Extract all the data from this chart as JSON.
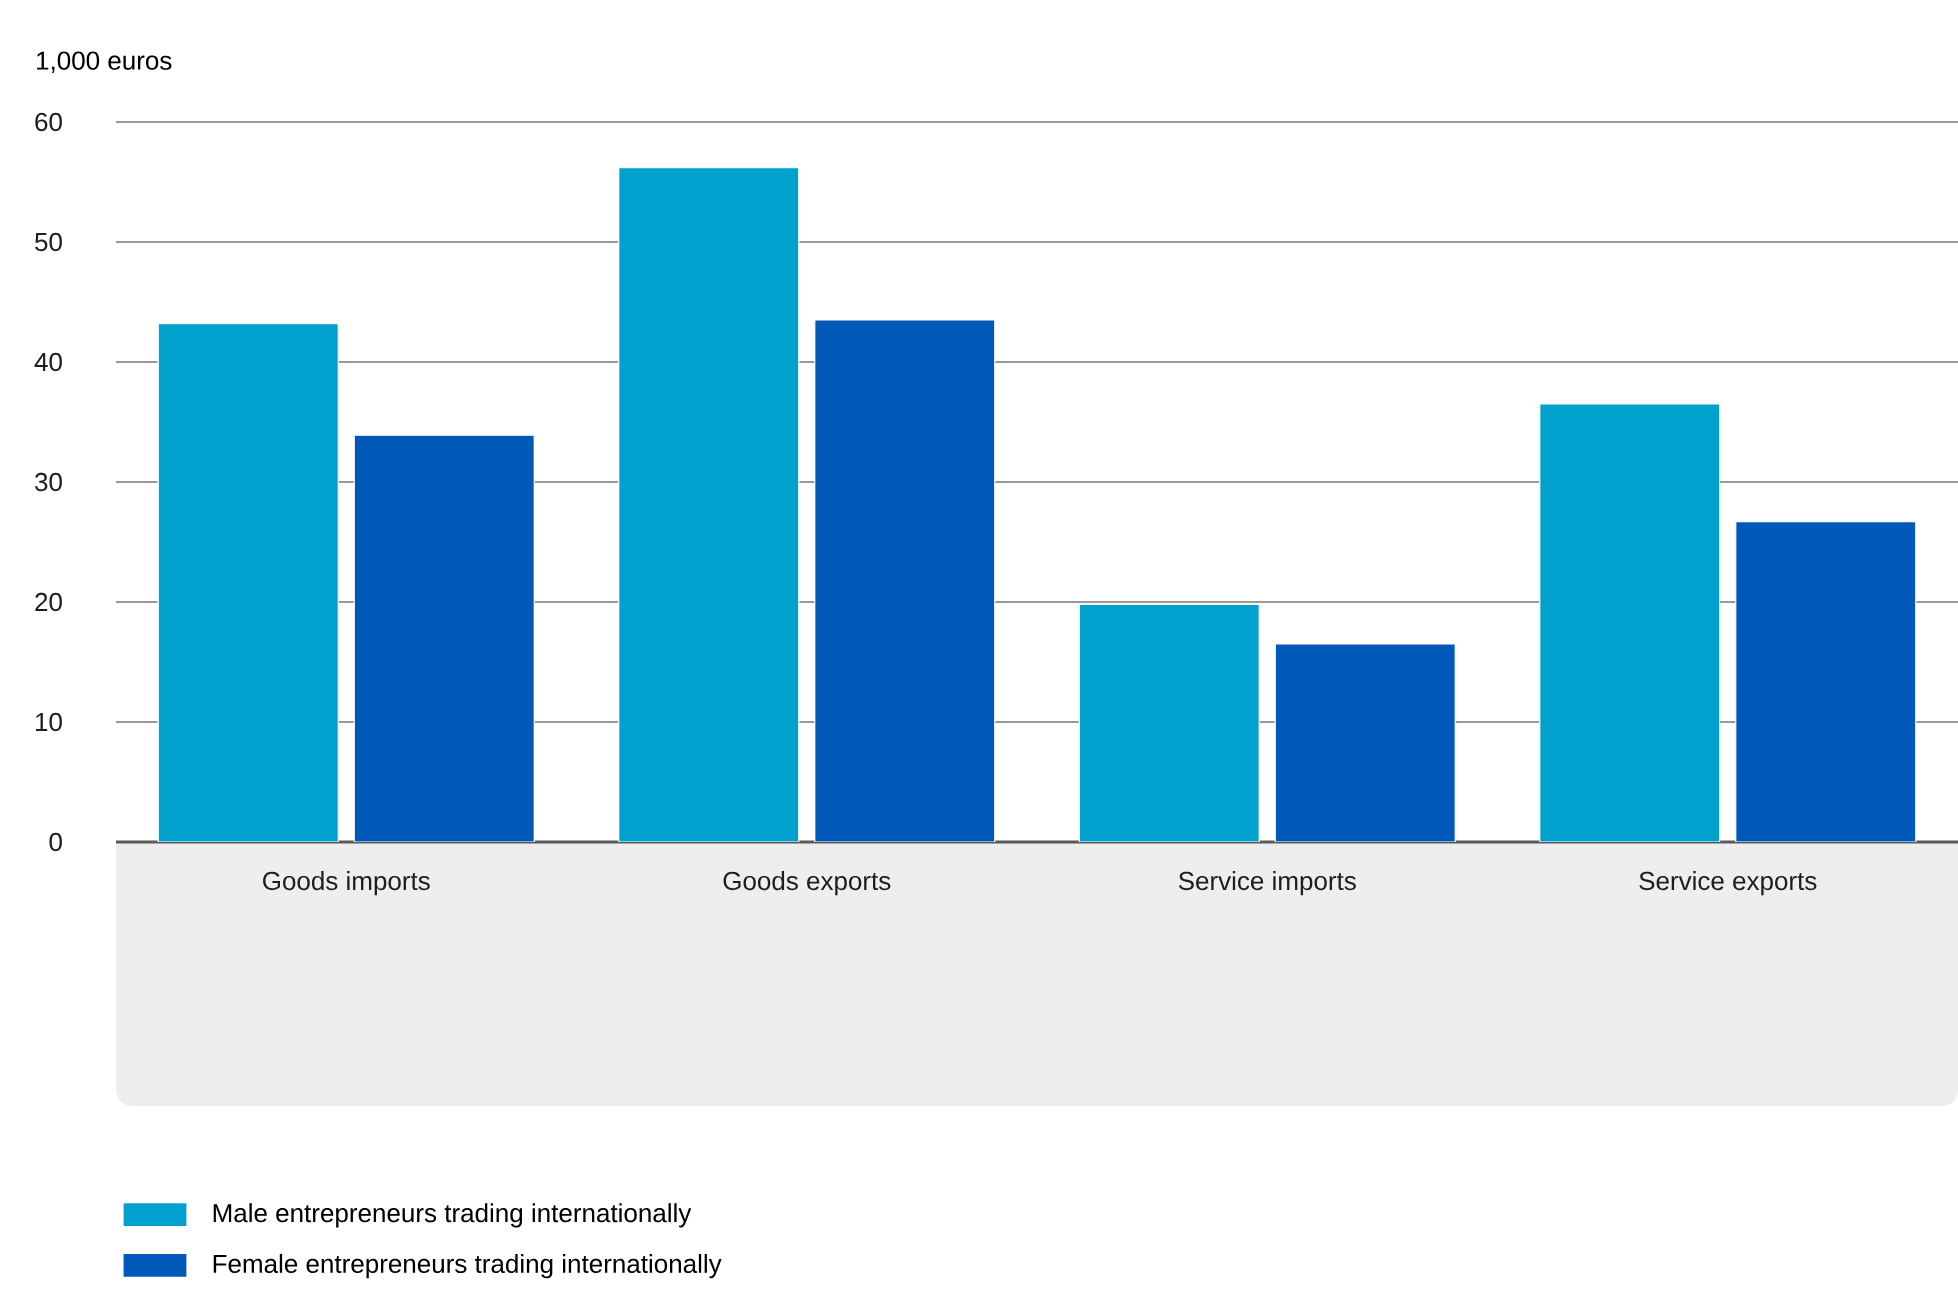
{
  "chart_data": {
    "type": "bar",
    "ylabel": "1,000 euros",
    "categories": [
      "Goods imports",
      "Goods exports",
      "Service imports",
      "Service exports"
    ],
    "series": [
      {
        "name": "Male entrepreneurs trading internationally",
        "color": "#00a1cd",
        "values": [
          43.2,
          56.2,
          19.8,
          36.5
        ]
      },
      {
        "name": "Female entrepreneurs trading internationally",
        "color": "#0058b8",
        "values": [
          33.9,
          43.5,
          16.5,
          26.7
        ]
      }
    ],
    "ylim": [
      0,
      60
    ],
    "yticks": [
      0,
      10,
      20,
      30,
      40,
      50,
      60
    ],
    "grid": "y",
    "legend": "bottom left"
  }
}
